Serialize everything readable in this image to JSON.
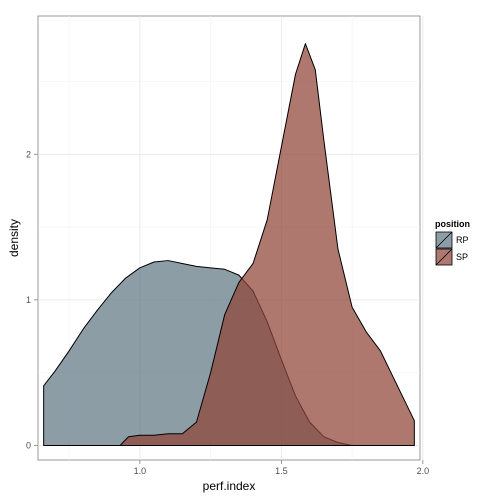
{
  "chart_data": {
    "type": "area",
    "title": "",
    "xlabel": "perf.index",
    "ylabel": "density",
    "xlim": [
      0.64,
      1.99
    ],
    "ylim": [
      -0.1,
      2.95
    ],
    "x_ticks": [
      1.0,
      1.5,
      2.0
    ],
    "x_tick_labels": [
      "1.0",
      "1.5",
      "2.0"
    ],
    "y_ticks": [
      0,
      1,
      2
    ],
    "y_tick_labels": [
      "0",
      "1",
      "2"
    ],
    "grid": true,
    "legend": {
      "title": "position",
      "placement": "right"
    },
    "series": [
      {
        "name": "RP",
        "color": "#5f7783",
        "points": [
          [
            0.66,
            0.41
          ],
          [
            0.7,
            0.51
          ],
          [
            0.75,
            0.65
          ],
          [
            0.8,
            0.8
          ],
          [
            0.85,
            0.93
          ],
          [
            0.9,
            1.05
          ],
          [
            0.95,
            1.15
          ],
          [
            1.0,
            1.22
          ],
          [
            1.05,
            1.26
          ],
          [
            1.1,
            1.27
          ],
          [
            1.15,
            1.25
          ],
          [
            1.2,
            1.23
          ],
          [
            1.25,
            1.22
          ],
          [
            1.3,
            1.21
          ],
          [
            1.35,
            1.17
          ],
          [
            1.4,
            1.06
          ],
          [
            1.45,
            0.85
          ],
          [
            1.5,
            0.59
          ],
          [
            1.55,
            0.34
          ],
          [
            1.6,
            0.16
          ],
          [
            1.65,
            0.06
          ],
          [
            1.7,
            0.02
          ],
          [
            1.75,
            0.0
          ]
        ]
      },
      {
        "name": "SP",
        "color": "#8f4438",
        "points": [
          [
            0.93,
            0.0
          ],
          [
            0.96,
            0.06
          ],
          [
            1.0,
            0.07
          ],
          [
            1.05,
            0.07
          ],
          [
            1.1,
            0.08
          ],
          [
            1.15,
            0.08
          ],
          [
            1.2,
            0.16
          ],
          [
            1.25,
            0.5
          ],
          [
            1.3,
            0.9
          ],
          [
            1.35,
            1.12
          ],
          [
            1.4,
            1.25
          ],
          [
            1.45,
            1.55
          ],
          [
            1.5,
            2.05
          ],
          [
            1.55,
            2.55
          ],
          [
            1.585,
            2.76
          ],
          [
            1.62,
            2.58
          ],
          [
            1.65,
            2.1
          ],
          [
            1.7,
            1.35
          ],
          [
            1.75,
            0.95
          ],
          [
            1.8,
            0.78
          ],
          [
            1.85,
            0.65
          ],
          [
            1.9,
            0.45
          ],
          [
            1.95,
            0.25
          ],
          [
            1.97,
            0.17
          ]
        ]
      }
    ]
  }
}
